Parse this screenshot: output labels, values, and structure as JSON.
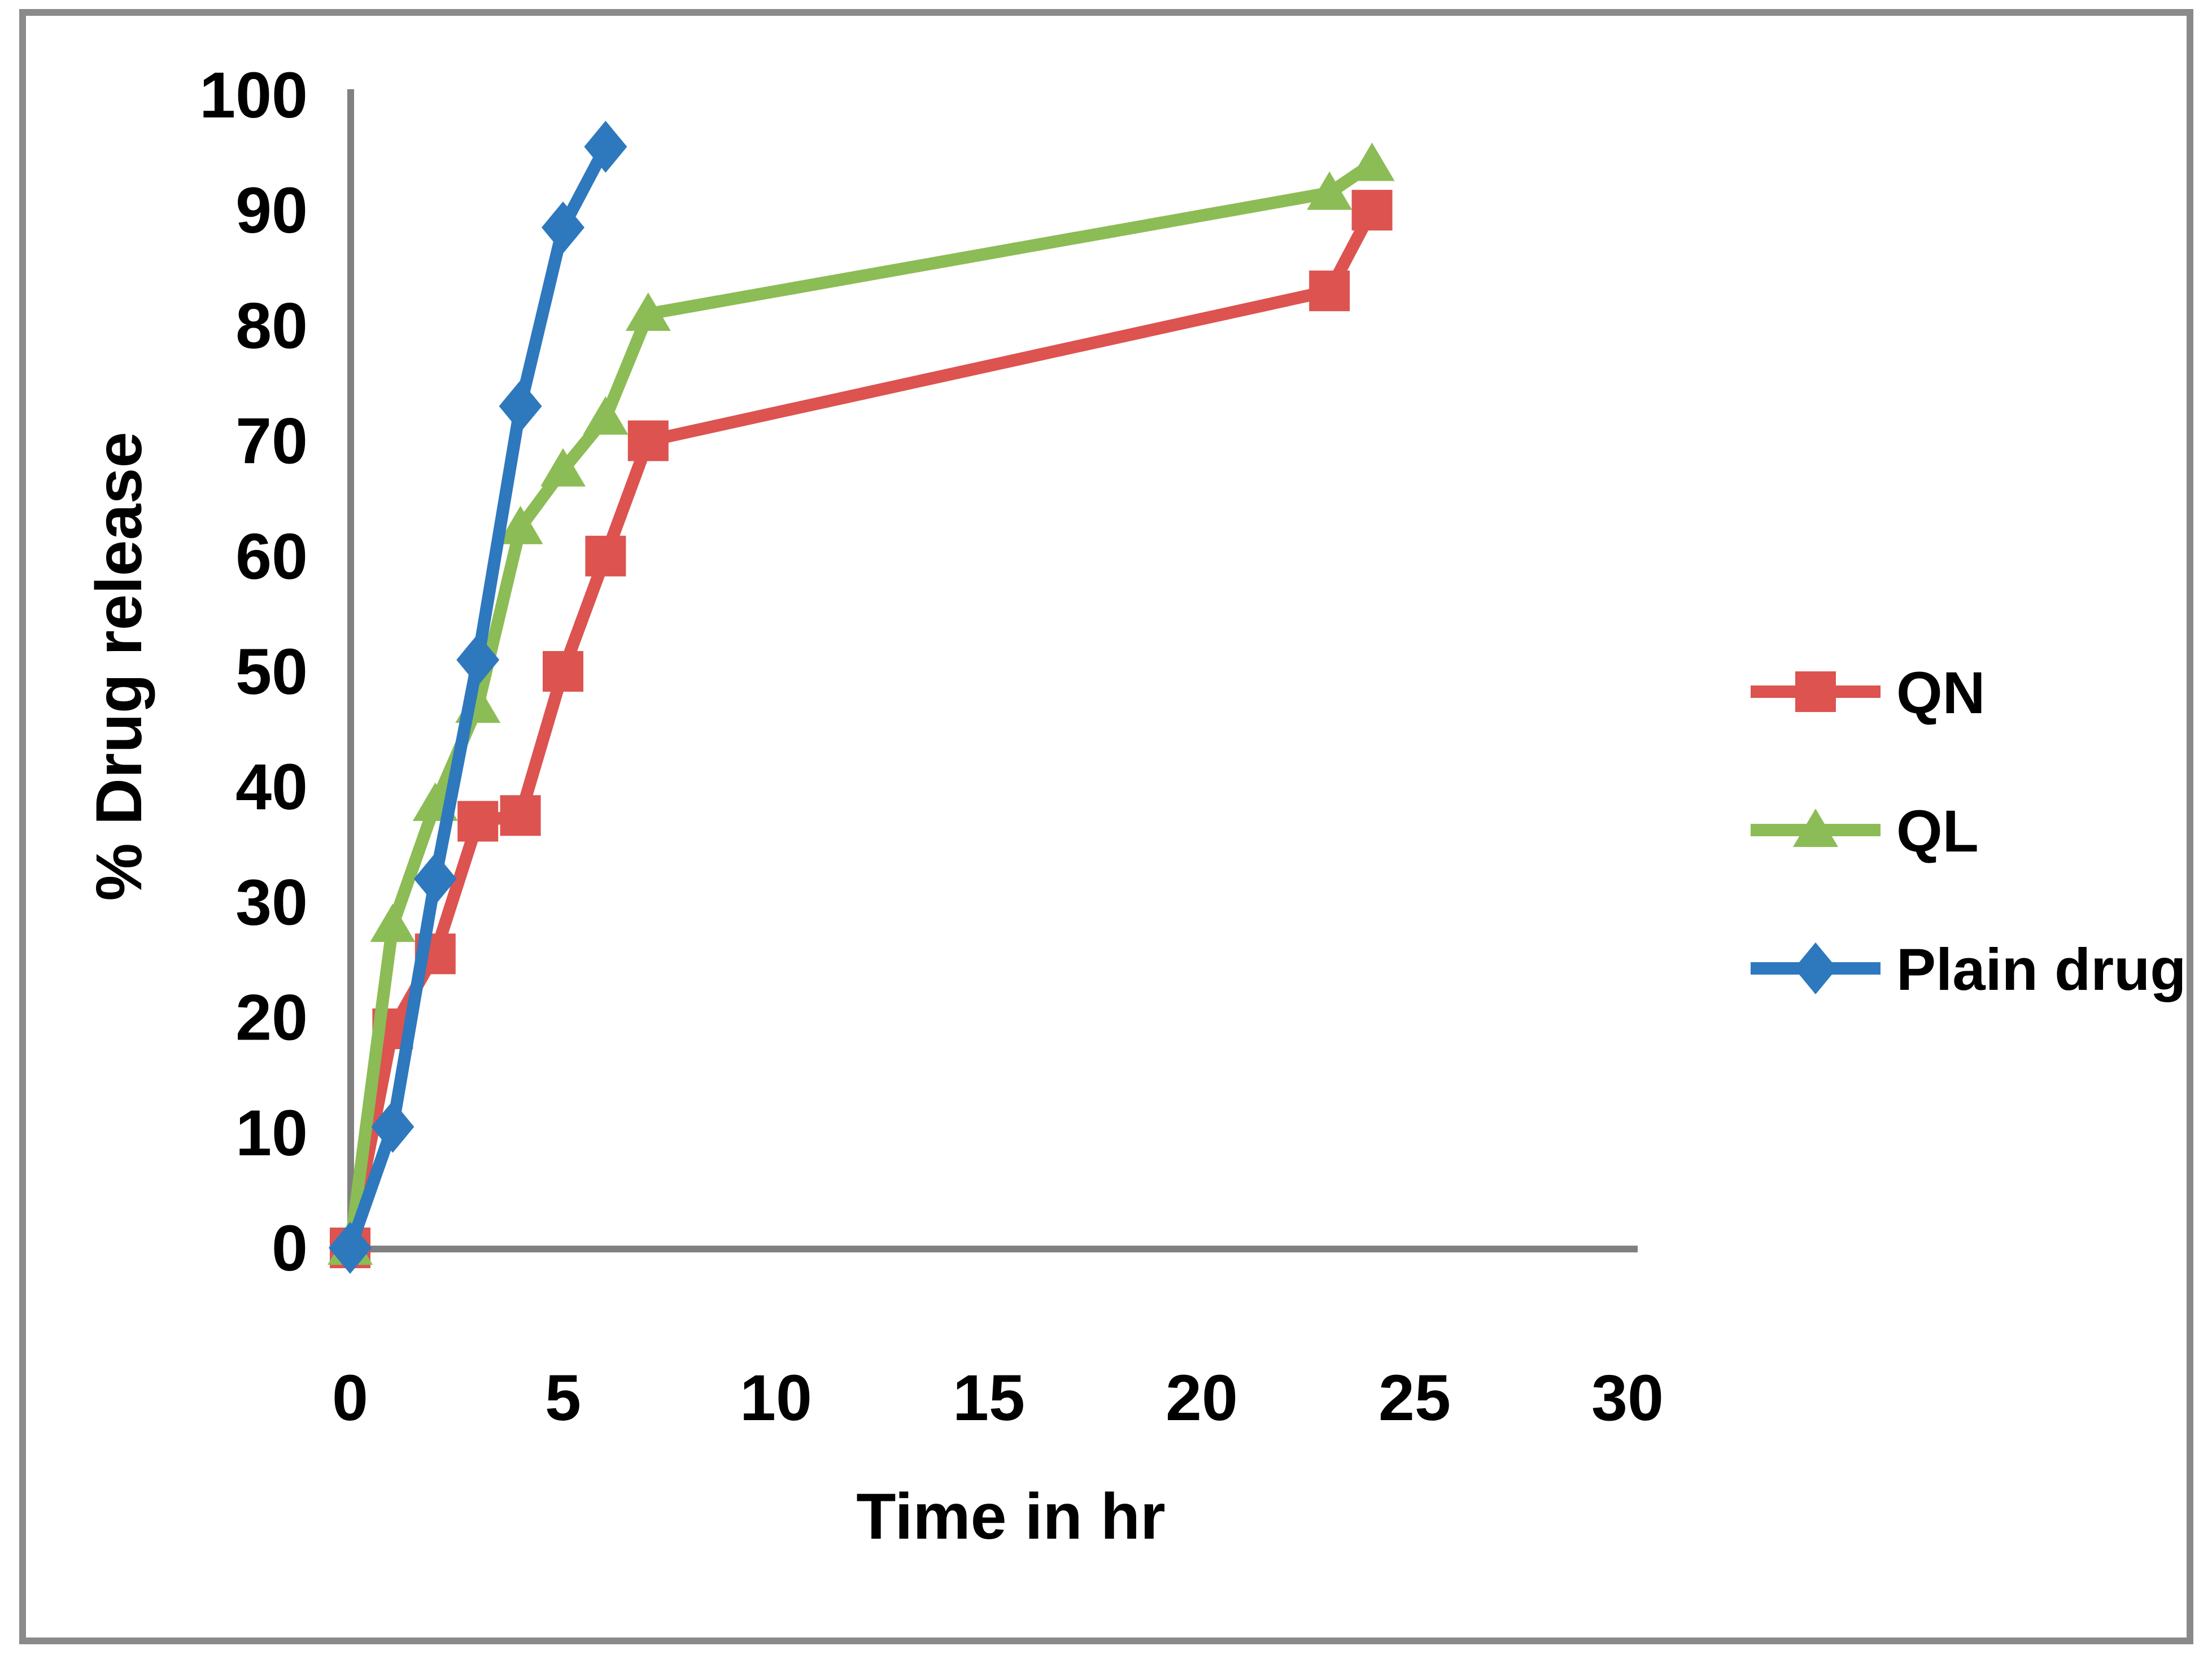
{
  "frame": {
    "background": "#FFFFFF",
    "border_color": "#8A8A8A",
    "axis_color": "#808080",
    "text_color": "#000000"
  },
  "chart_data": {
    "type": "line",
    "title": "",
    "xlabel": "Time in hr",
    "ylabel": "% Drug release",
    "xlim": [
      0,
      30.5
    ],
    "ylim": [
      0,
      100
    ],
    "xticks": [
      0,
      5,
      10,
      15,
      20,
      25,
      30
    ],
    "yticks": [
      0,
      10,
      20,
      30,
      40,
      50,
      60,
      70,
      80,
      90,
      100
    ],
    "grid": false,
    "legend_position": "right",
    "series": [
      {
        "name": "QN",
        "color": "#DC5350",
        "marker": "square",
        "x": [
          0,
          1,
          2,
          3,
          4,
          5,
          6,
          7,
          23,
          24
        ],
        "values": [
          0,
          19,
          25.5,
          37,
          37.5,
          50,
          60,
          70,
          83,
          90
        ]
      },
      {
        "name": "QL",
        "color": "#8CBC55",
        "marker": "triangle",
        "x": [
          0,
          1,
          2,
          3,
          4,
          5,
          6,
          7,
          23,
          24
        ],
        "values": [
          0,
          28,
          38.5,
          47,
          62.5,
          67.5,
          72,
          81,
          91.5,
          94
        ]
      },
      {
        "name": "Plain drug",
        "color": "#2E78BE",
        "marker": "diamond",
        "x": [
          0,
          1,
          2,
          3,
          4,
          5,
          6
        ],
        "values": [
          0,
          10.5,
          32,
          51,
          73,
          88.5,
          95.5
        ]
      }
    ]
  }
}
